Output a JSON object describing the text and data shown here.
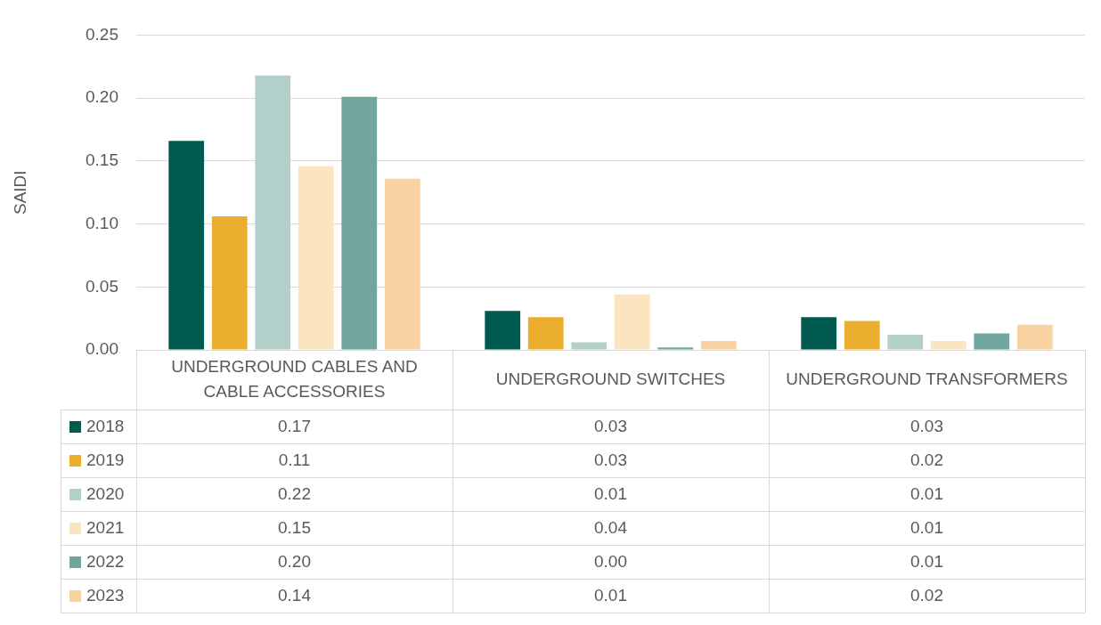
{
  "chart_data": {
    "type": "bar",
    "ylabel": "SAIDI",
    "categories": [
      "UNDERGROUND CABLES AND CABLE ACCESSORIES",
      "UNDERGROUND SWITCHES",
      "UNDERGROUND TRANSFORMERS"
    ],
    "series": [
      {
        "name": "2018",
        "color": "#005a4f",
        "values": [
          0.166,
          0.031,
          0.026
        ],
        "value_labels": [
          "0.17",
          "0.03",
          "0.03"
        ]
      },
      {
        "name": "2019",
        "color": "#ecae2f",
        "values": [
          0.106,
          0.026,
          0.023
        ],
        "value_labels": [
          "0.11",
          "0.03",
          "0.02"
        ]
      },
      {
        "name": "2020",
        "color": "#b3cfca",
        "values": [
          0.218,
          0.006,
          0.012
        ],
        "value_labels": [
          "0.22",
          "0.01",
          "0.01"
        ]
      },
      {
        "name": "2021",
        "color": "#fbe5c1",
        "values": [
          0.146,
          0.044,
          0.007
        ],
        "value_labels": [
          "0.15",
          "0.04",
          "0.01"
        ]
      },
      {
        "name": "2022",
        "color": "#71a59e",
        "values": [
          0.201,
          0.002,
          0.013
        ],
        "value_labels": [
          "0.20",
          "0.00",
          "0.01"
        ]
      },
      {
        "name": "2023",
        "color": "#f8d2a1",
        "values": [
          0.136,
          0.007,
          0.02
        ],
        "value_labels": [
          "0.14",
          "0.01",
          "0.02"
        ]
      }
    ],
    "ylim": [
      0,
      0.25
    ],
    "yticks": [
      {
        "value": 0,
        "label": "0.00"
      },
      {
        "value": 0.05,
        "label": "0.05"
      },
      {
        "value": 0.1,
        "label": "0.10"
      },
      {
        "value": 0.15,
        "label": "0.15"
      },
      {
        "value": 0.2,
        "label": "0.20"
      },
      {
        "value": 0.25,
        "label": "0.25"
      }
    ],
    "grid": "y",
    "legend": "bottom"
  }
}
